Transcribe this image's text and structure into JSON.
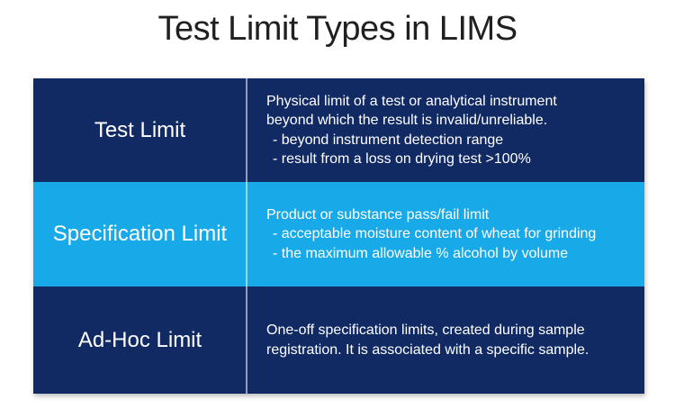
{
  "title": "Test Limit Types in LIMS",
  "colors": {
    "navy": "#112A64",
    "cyan": "#18A9E8",
    "title_text": "#202020",
    "cell_text": "#FFFFFF",
    "divider": "#FFFFFF8C"
  },
  "table": {
    "rows": [
      {
        "label": "Test Limit",
        "lines": [
          "Physical limit of a test or analytical instrument",
          "beyond which the result is invalid/unreliable.",
          "- beyond instrument detection range",
          "- result from a loss on drying test >100%"
        ]
      },
      {
        "label": "Specification Limit",
        "lines": [
          "Product or substance pass/fail limit",
          "- acceptable moisture content of wheat for grinding",
          "- the maximum allowable % alcohol by volume"
        ]
      },
      {
        "label": "Ad-Hoc Limit",
        "lines": [
          "One-off specification limits, created during sample",
          "registration. It is associated with a specific sample."
        ]
      }
    ]
  }
}
